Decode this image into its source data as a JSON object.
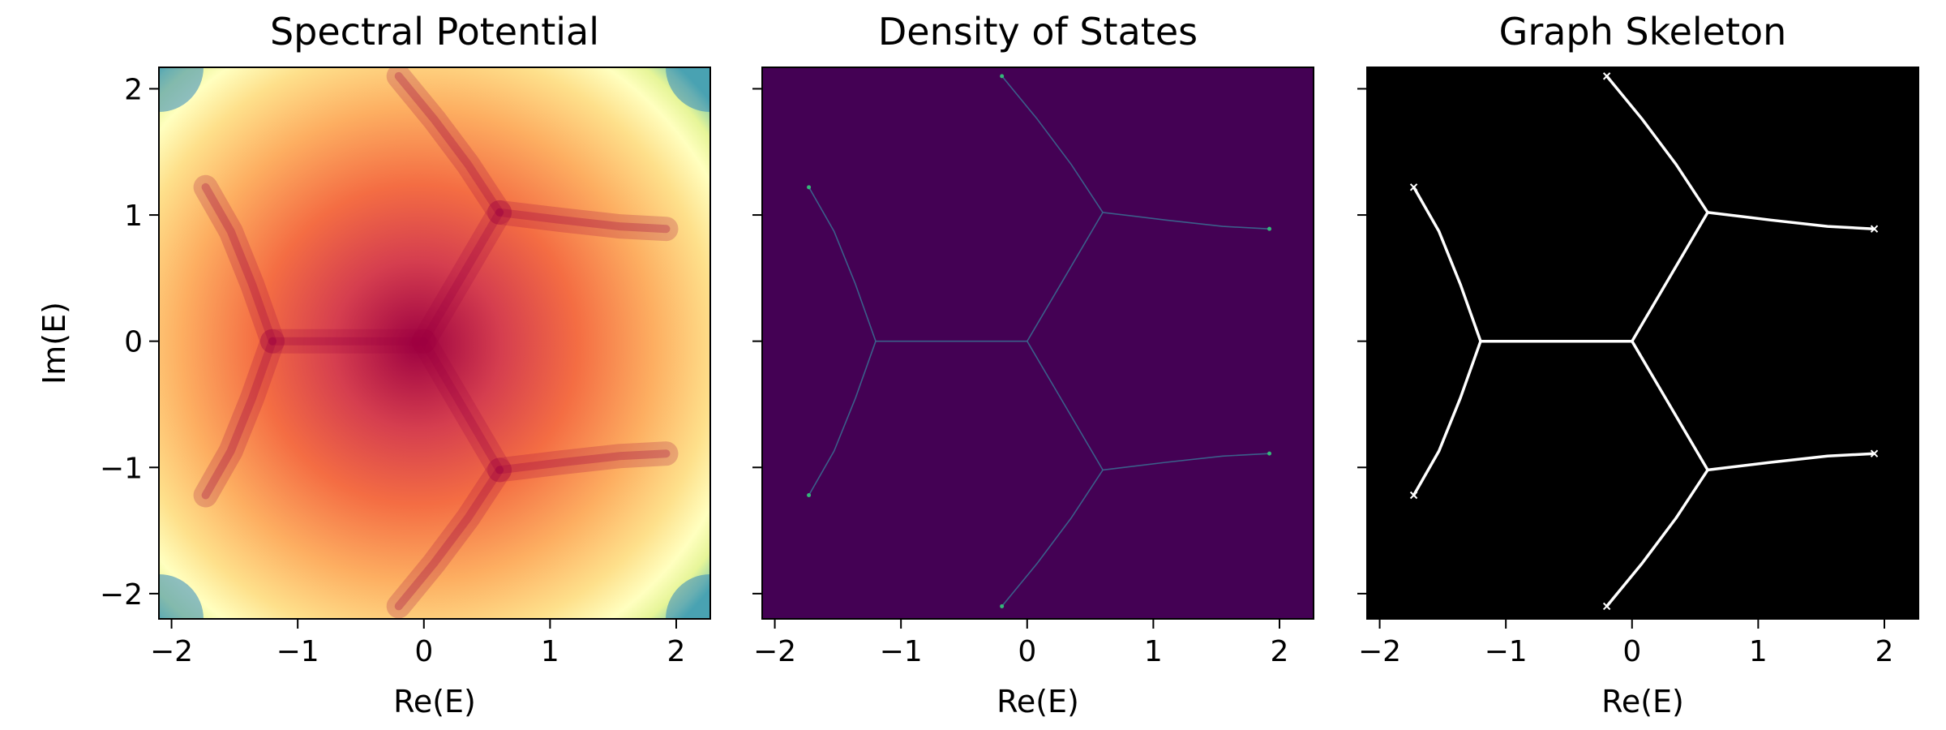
{
  "figure": {
    "background": "#ffffff"
  },
  "chart_data": [
    {
      "type": "heatmap",
      "title": "Spectral Potential",
      "xlabel": "Re(E)",
      "ylabel": "Im(E)",
      "xlim": [
        -2.1,
        2.27
      ],
      "ylim": [
        -2.2,
        2.17
      ],
      "xticks": [
        -2,
        -1,
        0,
        1,
        2
      ],
      "yticks": [
        -2,
        -1,
        0,
        1,
        2
      ],
      "xtick_labels": [
        "−2",
        "−1",
        "0",
        "1",
        "2"
      ],
      "ytick_labels": [
        "−2",
        "−1",
        "0",
        "1",
        "2"
      ],
      "colormap": "Spectral",
      "colormap_stops": [
        "#9e0142",
        "#d53e4f",
        "#f46d43",
        "#fdae61",
        "#fee08b",
        "#ffffbf",
        "#e6f598",
        "#abdda4",
        "#66c2a5",
        "#3288bd",
        "#5e4fa2"
      ],
      "grid": false,
      "legend": "none"
    },
    {
      "type": "heatmap",
      "title": "Density of States",
      "xlabel": "Re(E)",
      "ylabel": "",
      "xlim": [
        -2.1,
        2.27
      ],
      "ylim": [
        -2.2,
        2.17
      ],
      "xticks": [
        -2,
        -1,
        0,
        1,
        2
      ],
      "yticks": [
        -2,
        -1,
        0,
        1,
        2
      ],
      "xtick_labels": [
        "−2",
        "−1",
        "0",
        "1",
        "2"
      ],
      "colormap": "viridis",
      "background_color": "#440154",
      "line_color": "#3b5f8a",
      "endpoint_color": "#35b779",
      "grid": false,
      "legend": "none"
    },
    {
      "type": "heatmap",
      "title": "Graph Skeleton",
      "xlabel": "Re(E)",
      "ylabel": "",
      "xlim": [
        -2.1,
        2.27
      ],
      "ylim": [
        -2.2,
        2.17
      ],
      "xticks": [
        -2,
        -1,
        0,
        1,
        2
      ],
      "yticks": [
        -2,
        -1,
        0,
        1,
        2
      ],
      "xtick_labels": [
        "−2",
        "−1",
        "0",
        "1",
        "2"
      ],
      "colormap": "gray",
      "background_color": "#000000",
      "line_color": "#ffffff",
      "grid": false,
      "legend": "none"
    }
  ],
  "graph": {
    "nodes": [
      {
        "id": "A",
        "x": -1.2,
        "y": 0.0
      },
      {
        "id": "B",
        "x": 0.0,
        "y": 0.0
      },
      {
        "id": "C",
        "x": 0.6,
        "y": 1.02
      },
      {
        "id": "D",
        "x": 0.6,
        "y": -1.02
      },
      {
        "id": "E1",
        "x": -1.73,
        "y": 1.22
      },
      {
        "id": "E2",
        "x": -1.73,
        "y": -1.22
      },
      {
        "id": "E3",
        "x": -0.2,
        "y": 2.1
      },
      {
        "id": "E4",
        "x": -0.2,
        "y": -2.1
      },
      {
        "id": "E5",
        "x": 1.92,
        "y": 0.89
      },
      {
        "id": "E6",
        "x": 1.92,
        "y": -0.89
      }
    ],
    "edges": [
      {
        "from": "A",
        "to": "B",
        "points": [
          [
            -1.2,
            0.0
          ],
          [
            0.0,
            0.0
          ]
        ]
      },
      {
        "from": "A",
        "to": "E1",
        "points": [
          [
            -1.2,
            0.0
          ],
          [
            -1.36,
            0.45
          ],
          [
            -1.53,
            0.87
          ],
          [
            -1.73,
            1.22
          ]
        ]
      },
      {
        "from": "A",
        "to": "E2",
        "points": [
          [
            -1.2,
            0.0
          ],
          [
            -1.36,
            -0.45
          ],
          [
            -1.53,
            -0.87
          ],
          [
            -1.73,
            -1.22
          ]
        ]
      },
      {
        "from": "B",
        "to": "C",
        "points": [
          [
            0.0,
            0.0
          ],
          [
            0.3,
            0.51
          ],
          [
            0.6,
            1.02
          ]
        ]
      },
      {
        "from": "B",
        "to": "D",
        "points": [
          [
            0.0,
            0.0
          ],
          [
            0.3,
            -0.51
          ],
          [
            0.6,
            -1.02
          ]
        ]
      },
      {
        "from": "C",
        "to": "E3",
        "points": [
          [
            0.6,
            1.02
          ],
          [
            0.35,
            1.4
          ],
          [
            0.08,
            1.76
          ],
          [
            -0.2,
            2.1
          ]
        ]
      },
      {
        "from": "C",
        "to": "E5",
        "points": [
          [
            0.6,
            1.02
          ],
          [
            1.1,
            0.96
          ],
          [
            1.55,
            0.91
          ],
          [
            1.92,
            0.89
          ]
        ]
      },
      {
        "from": "D",
        "to": "E4",
        "points": [
          [
            0.6,
            -1.02
          ],
          [
            0.35,
            -1.4
          ],
          [
            0.08,
            -1.76
          ],
          [
            -0.2,
            -2.1
          ]
        ]
      },
      {
        "from": "D",
        "to": "E6",
        "points": [
          [
            0.6,
            -1.02
          ],
          [
            1.1,
            -0.96
          ],
          [
            1.55,
            -0.91
          ],
          [
            1.92,
            -0.89
          ]
        ]
      }
    ]
  }
}
